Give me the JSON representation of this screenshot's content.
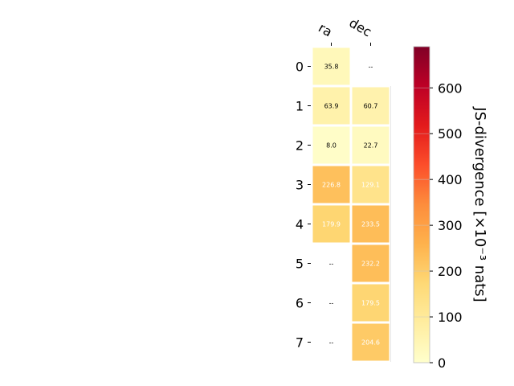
{
  "chart_data": {
    "type": "heatmap",
    "columns": [
      "ra",
      "dec"
    ],
    "rows": [
      "0",
      "1",
      "2",
      "3",
      "4",
      "5",
      "6",
      "7"
    ],
    "values": [
      [
        35.8,
        null
      ],
      [
        63.9,
        60.7
      ],
      [
        8.0,
        22.7
      ],
      [
        226.8,
        129.1
      ],
      [
        179.9,
        233.5
      ],
      [
        null,
        232.2
      ],
      [
        null,
        179.5
      ],
      [
        null,
        204.6
      ]
    ],
    "cell_labels": [
      [
        "35.8",
        "--"
      ],
      [
        "63.9",
        "60.7"
      ],
      [
        "8.0",
        "22.7"
      ],
      [
        "226.8",
        "129.1"
      ],
      [
        "179.9",
        "233.5"
      ],
      [
        "--",
        "232.2"
      ],
      [
        "--",
        "179.5"
      ],
      [
        "--",
        "204.6"
      ]
    ],
    "colorbar": {
      "label": "JS-divergence [×10⁻³ nats]",
      "range": [
        0,
        690
      ],
      "ticks": [
        "0",
        "100",
        "200",
        "300",
        "400",
        "500",
        "600"
      ],
      "colormap": "YlOrRd",
      "colormap_stops": [
        "#ffffcc",
        "#ffeda0",
        "#fed976",
        "#feb24c",
        "#fd8d3c",
        "#fc4e2a",
        "#e31a1c",
        "#bd0026",
        "#800026"
      ]
    }
  }
}
